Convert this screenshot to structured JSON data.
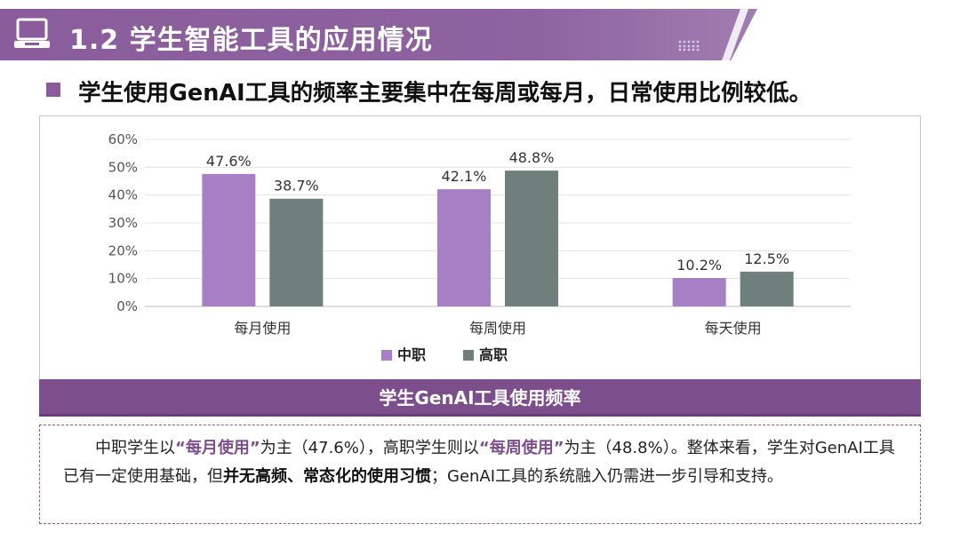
{
  "header": {
    "title": "1.2 学生智能工具的应用情况",
    "icon": "laptop-icon",
    "accent_color": "#8a5c9b"
  },
  "subtitle": "学生使用GenAI工具的频率主要集中在每周或每月，日常使用比例较低。",
  "chart_data": {
    "type": "bar",
    "categories": [
      "每月使用",
      "每周使用",
      "每天使用"
    ],
    "series": [
      {
        "name": "中职",
        "values": [
          47.6,
          42.1,
          10.2
        ],
        "color": "#a77fc4"
      },
      {
        "name": "高职",
        "values": [
          38.7,
          48.8,
          12.5
        ],
        "color": "#6f7f7b"
      }
    ],
    "data_labels": [
      [
        "47.6%",
        "42.1%",
        "10.2%"
      ],
      [
        "38.7%",
        "48.8%",
        "12.5%"
      ]
    ],
    "yticks": [
      "0%",
      "10%",
      "20%",
      "30%",
      "40%",
      "50%",
      "60%"
    ],
    "ylim": [
      0,
      60
    ],
    "grid": true,
    "legend_position": "bottom",
    "title": "",
    "xlabel": "",
    "ylabel": ""
  },
  "caption": "学生GenAI工具使用频率",
  "summary": {
    "p1": "中职学生以",
    "h1": "“每月使用”",
    "p2": "为主（47.6%），高职学生则以",
    "h2": "“每周使用”",
    "p3": "为主（48.8%）。整体来看，学生对GenAI工具已有一定使用基础，但",
    "b1": "并无高频、常态化的使用习惯",
    "p4": "；GenAI工具的系统融入仍需进一步引导和支持。"
  }
}
